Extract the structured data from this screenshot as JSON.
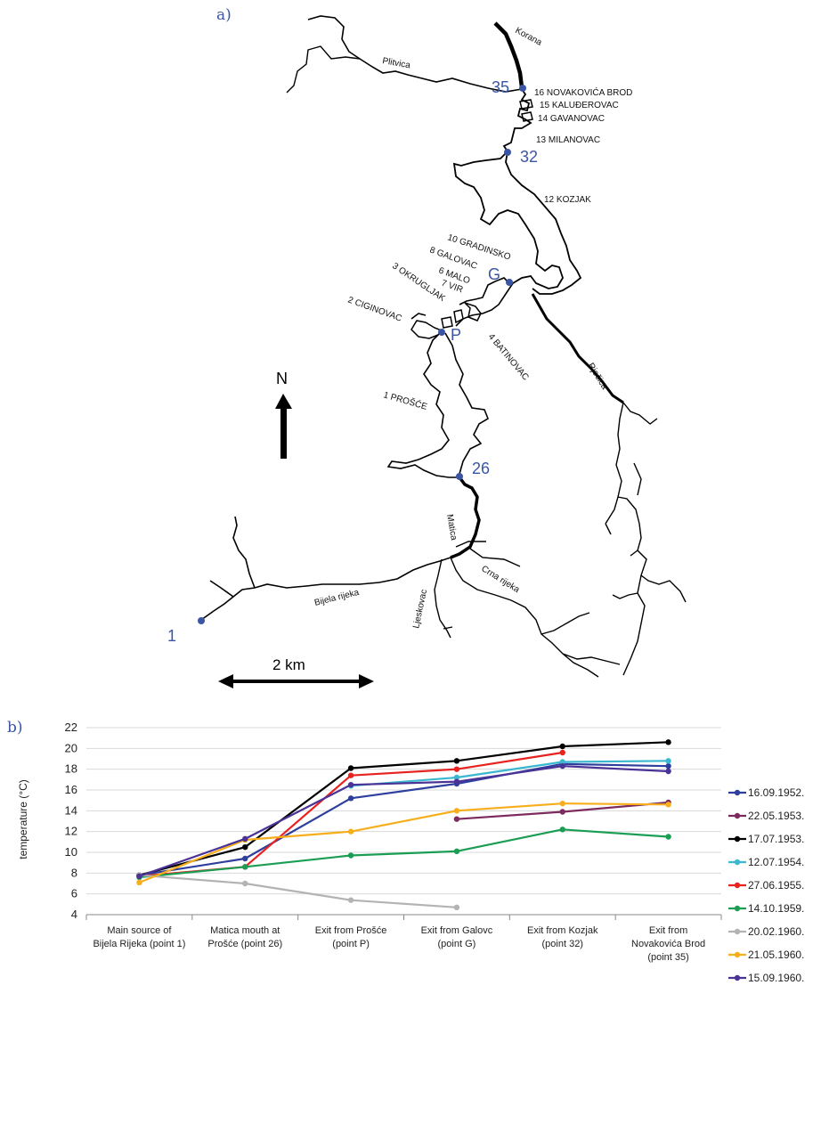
{
  "map": {
    "panel_label": "a)",
    "north_label": "N",
    "scale_label": "2 km",
    "rivers": {
      "korana": "Korana",
      "plitvica": "Plitvica",
      "rjecica": "Rječica",
      "matica": "Matica",
      "bijela": "Bijela rijeka",
      "ljeskovac": "Ljeskovac",
      "crna": "Crna rijeka"
    },
    "lakes": {
      "l16": "16 NOVAKOVIĆA BROD",
      "l15": "15 KALUĐEROVAC",
      "l14": "14 GAVANOVAC",
      "l13": "13 MILANOVAC",
      "l12": "12 KOZJAK",
      "l10": "10 GRADINSKO",
      "l8": "8 GALOVAC",
      "l6": "6 MALO",
      "l7": "7 VIR",
      "l3": "3 OKRUGLJAK",
      "l2": "2 CIGINOVAC",
      "l4": "4 BATINOVAC",
      "l1": "1 PROŠĆE"
    },
    "points": {
      "p35": "35",
      "p32": "32",
      "pG": "G",
      "pP": "P",
      "p26": "26",
      "p1": "1"
    }
  },
  "chart_data": {
    "panel_label": "b)",
    "type": "line",
    "ylabel": "temperature (°C)",
    "xlabel": "",
    "ylim": [
      4,
      22
    ],
    "yticks": [
      4,
      6,
      8,
      10,
      12,
      14,
      16,
      18,
      20,
      22
    ],
    "grid": "horizontal",
    "legend_position": "right",
    "categories": [
      [
        "Main source of",
        "Bijela Rijeka (point 1)"
      ],
      [
        "Matica mouth at",
        "Prošće (point 26)"
      ],
      [
        "Exit from Prošće",
        "(point P)"
      ],
      [
        "Exit from Galovc",
        "(point G)"
      ],
      [
        "Exit from Kozjak",
        "(point 32)"
      ],
      [
        "Exit from",
        "Novakovića Brod",
        "(point 35)"
      ]
    ],
    "series": [
      {
        "name": "16.09.1952.",
        "color": "#2e3f9e",
        "values": [
          7.8,
          9.4,
          15.2,
          16.6,
          18.5,
          18.3
        ]
      },
      {
        "name": "22.05.1953.",
        "color": "#7d2a5e",
        "values": [
          null,
          null,
          null,
          13.2,
          13.9,
          14.8
        ]
      },
      {
        "name": "17.07.1953.",
        "color": "#000000",
        "values": [
          7.8,
          10.5,
          18.1,
          18.8,
          20.2,
          20.6
        ]
      },
      {
        "name": "12.07.1954.",
        "color": "#3bb7d0",
        "values": [
          null,
          null,
          16.4,
          17.2,
          18.7,
          18.8
        ]
      },
      {
        "name": "27.06.1955.",
        "color": "#e8231f",
        "values": [
          7.7,
          8.6,
          17.4,
          18.0,
          19.6,
          null
        ]
      },
      {
        "name": "14.10.1959.",
        "color": "#1a9e54",
        "values": [
          7.6,
          8.6,
          9.7,
          10.1,
          12.2,
          11.5
        ]
      },
      {
        "name": "20.02.1960.",
        "color": "#b3b3b3",
        "values": [
          7.8,
          7.0,
          5.4,
          4.7,
          null,
          null
        ]
      },
      {
        "name": "21.05.1960.",
        "color": "#f6ae1b",
        "values": [
          7.1,
          11.2,
          12.0,
          14.0,
          14.7,
          14.6
        ]
      },
      {
        "name": "15.09.1960.",
        "color": "#4a3296",
        "values": [
          7.7,
          11.3,
          16.5,
          16.8,
          18.3,
          17.8
        ]
      }
    ]
  }
}
